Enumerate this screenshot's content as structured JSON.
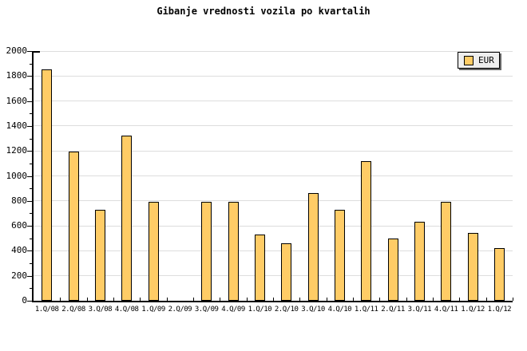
{
  "chart_data": {
    "type": "bar",
    "title": "Gibanje vrednosti vozila po kvartalih",
    "categories": [
      "1.Q/08",
      "2.Q/08",
      "3.Q/08",
      "4.Q/08",
      "1.Q/09",
      "2.Q/09",
      "3.Q/09",
      "4.Q/09",
      "1.Q/10",
      "2.Q/10",
      "3.Q/10",
      "4.Q/10",
      "1.Q/11",
      "2.Q/11",
      "3.Q/11",
      "4.Q/11",
      "1.Q/12",
      "1.Q/12"
    ],
    "series": [
      {
        "name": "EUR",
        "values": [
          1850,
          1195,
          730,
          1320,
          790,
          0,
          790,
          790,
          530,
          460,
          860,
          730,
          1120,
          500,
          630,
          790,
          545,
          420
        ]
      }
    ],
    "xlabel": "",
    "ylabel": "",
    "ylim": [
      0,
      2000
    ],
    "ytick_step": 200,
    "ytick_minor_step": 100,
    "ytick_labels": [
      "0",
      "200",
      "400",
      "600",
      "800",
      "1000",
      "1200",
      "1400",
      "1600",
      "1800",
      "2000"
    ],
    "grid": "horizontal",
    "legend_position": "top-right",
    "colors": {
      "bar_fill": "#FFCC66",
      "bar_border": "#000000",
      "gridline": "#DDDDDD",
      "axis": "#000000",
      "legend_bg": "#EEEEEE",
      "legend_shadow": "#666666",
      "background": "#FFFFFF",
      "text": "#000000"
    }
  }
}
